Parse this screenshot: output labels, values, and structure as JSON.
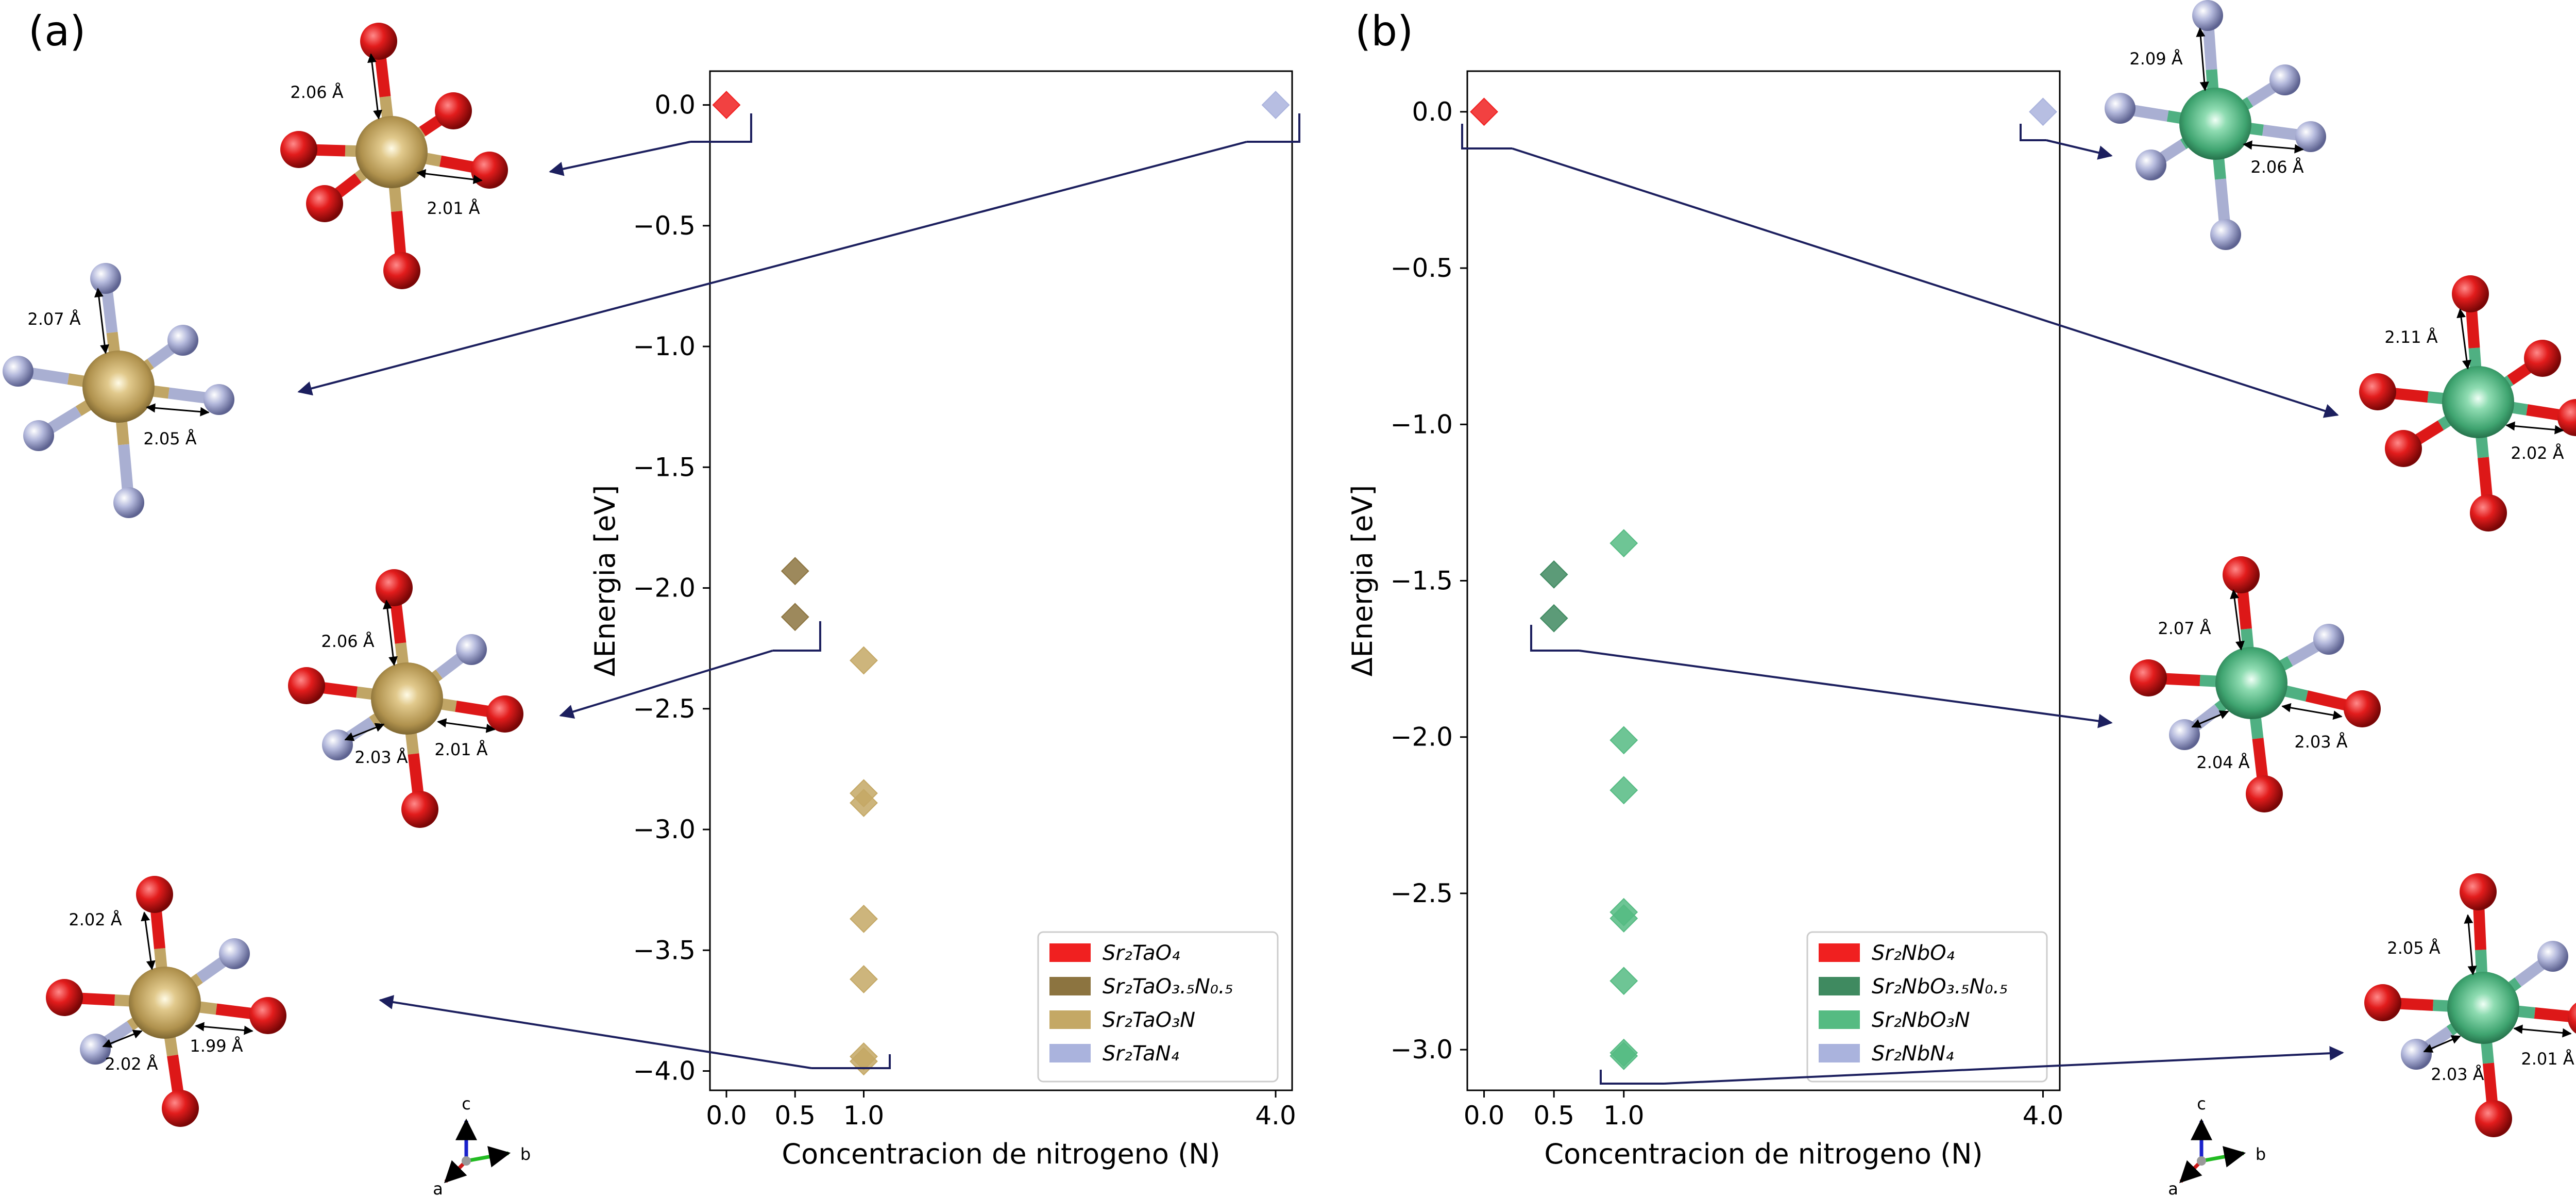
{
  "panels": [
    {
      "label": "(a)",
      "xlabel": "Concentracion de nitrogeno (N)",
      "ylabel": "ΔEnergia [eV]",
      "chart_data": {
        "type": "scatter",
        "xticks": [
          0.0,
          0.5,
          1.0,
          4.0
        ],
        "xtick_labels": [
          "0.0",
          "0.5",
          "1.0",
          "4.0"
        ],
        "yticks": [
          0.0,
          -0.5,
          -1.0,
          -1.5,
          -2.0,
          -2.5,
          -3.0,
          -3.5,
          -4.0
        ],
        "ytick_labels": [
          "0.0",
          "−0.5",
          "−1.0",
          "−1.5",
          "−2.0",
          "−2.5",
          "−3.0",
          "−3.5",
          "−4.0"
        ],
        "xlim": [
          -0.12,
          4.12
        ],
        "ylim": [
          -4.08,
          0.14
        ],
        "grid": false,
        "legend_position": "bottom-right",
        "series": [
          {
            "name": "Sr₂TaO₄",
            "color": "#f02020",
            "x": [
              0.0
            ],
            "y": [
              0.0
            ]
          },
          {
            "name": "Sr₂TaO₃.₅N₀.₅",
            "color": "#8c7440",
            "x": [
              0.5,
              0.5
            ],
            "y": [
              -1.93,
              -2.12
            ]
          },
          {
            "name": "Sr₂TaO₃N",
            "color": "#c4a865",
            "x": [
              1.0,
              1.0,
              1.0,
              1.0,
              1.0,
              1.0,
              1.0
            ],
            "y": [
              -2.3,
              -2.85,
              -2.89,
              -3.37,
              -3.62,
              -3.94,
              -3.96
            ]
          },
          {
            "name": "Sr₂TaN₄",
            "color": "#aab3dd",
            "x": [
              4.0
            ],
            "y": [
              0.0
            ]
          }
        ]
      },
      "distances": [
        "2.06 Å",
        "2.01 Å",
        "2.07 Å",
        "2.05 Å",
        "2.06 Å",
        "2.03 Å",
        "2.01 Å",
        "2.02 Å",
        "2.02 Å",
        "1.99 Å"
      ]
    },
    {
      "label": "(b)",
      "xlabel": "Concentracion de nitrogeno (N)",
      "ylabel": "ΔEnergia [eV]",
      "chart_data": {
        "type": "scatter",
        "xticks": [
          0.0,
          0.5,
          1.0,
          4.0
        ],
        "xtick_labels": [
          "0.0",
          "0.5",
          "1.0",
          "4.0"
        ],
        "yticks": [
          0.0,
          -0.5,
          -1.0,
          -1.5,
          -2.0,
          -2.5,
          -3.0
        ],
        "ytick_labels": [
          "0.0",
          "−0.5",
          "−1.0",
          "−1.5",
          "−2.0",
          "−2.5",
          "−3.0"
        ],
        "xlim": [
          -0.12,
          4.12
        ],
        "ylim": [
          -3.13,
          0.13
        ],
        "grid": false,
        "legend_position": "bottom-center",
        "series": [
          {
            "name": "Sr₂NbO₄",
            "color": "#f02020",
            "x": [
              0.0
            ],
            "y": [
              0.0
            ]
          },
          {
            "name": "Sr₂NbO₃.₅N₀.₅",
            "color": "#3f8a60",
            "x": [
              0.5,
              0.5
            ],
            "y": [
              -1.48,
              -1.62
            ]
          },
          {
            "name": "Sr₂NbO₃N",
            "color": "#55bb82",
            "x": [
              1.0,
              1.0,
              1.0,
              1.0,
              1.0,
              1.0,
              1.0,
              1.0
            ],
            "y": [
              -1.38,
              -2.01,
              -2.17,
              -2.56,
              -2.58,
              -2.78,
              -3.01,
              -3.02
            ]
          },
          {
            "name": "Sr₂NbN₄",
            "color": "#aab3dd",
            "x": [
              4.0
            ],
            "y": [
              0.0
            ]
          }
        ]
      },
      "distances": [
        "2.09 Å",
        "2.06 Å",
        "2.11 Å",
        "2.02 Å",
        "2.07 Å",
        "2.04 Å",
        "2.03 Å",
        "2.05 Å",
        "2.03 Å",
        "2.01 Å"
      ]
    }
  ],
  "axis_triad": {
    "labels": [
      "c",
      "b",
      "a"
    ]
  },
  "colors": {
    "ta_atom": "#c0a565",
    "nb_atom": "#4fb082",
    "oxygen": "#dd1818",
    "nitrogen": "#a9afd2",
    "connector": "#1c1f5e"
  }
}
